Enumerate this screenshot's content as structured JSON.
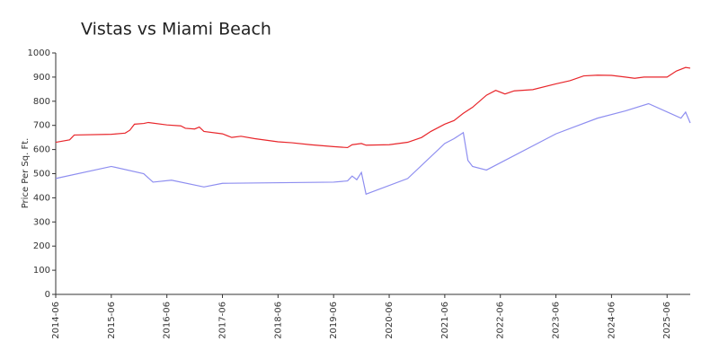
{
  "chart_data": {
    "type": "line",
    "title": "Vistas vs Miami Beach",
    "y_label": "Price Per Sq. Ft.",
    "xlim": [
      "2014-06",
      "2025-11"
    ],
    "xticks": [
      "2014-06",
      "2015-06",
      "2016-06",
      "2017-06",
      "2018-06",
      "2019-06",
      "2020-06",
      "2021-06",
      "2022-06",
      "2023-06",
      "2024-06",
      "2025-06"
    ],
    "ylim": [
      0,
      1000
    ],
    "yticks": [
      0,
      100,
      200,
      300,
      400,
      500,
      600,
      700,
      800,
      900,
      1000
    ],
    "series": [
      {
        "color": "#e8262b",
        "x": [
          "2014-06",
          "2014-09",
          "2014-10",
          "2015-06",
          "2015-09",
          "2015-10",
          "2015-11",
          "2016-01",
          "2016-02",
          "2016-06",
          "2016-09",
          "2016-10",
          "2016-12",
          "2017-01",
          "2017-02",
          "2017-06",
          "2017-08",
          "2017-10",
          "2018-01",
          "2018-06",
          "2018-09",
          "2019-01",
          "2019-06",
          "2019-09",
          "2019-10",
          "2019-12",
          "2020-01",
          "2020-06",
          "2020-10",
          "2021-01",
          "2021-03",
          "2021-06",
          "2021-08",
          "2021-10",
          "2021-12",
          "2022-03",
          "2022-05",
          "2022-07",
          "2022-09",
          "2023-01",
          "2023-06",
          "2023-09",
          "2023-12",
          "2024-03",
          "2024-06",
          "2024-09",
          "2024-11",
          "2025-01",
          "2025-06",
          "2025-08",
          "2025-10",
          "2025-11"
        ],
        "values": [
          630,
          640,
          660,
          663,
          668,
          680,
          705,
          708,
          712,
          702,
          698,
          688,
          685,
          693,
          675,
          665,
          650,
          655,
          645,
          632,
          628,
          620,
          612,
          608,
          620,
          625,
          618,
          620,
          630,
          650,
          675,
          705,
          720,
          750,
          775,
          825,
          845,
          830,
          843,
          848,
          872,
          885,
          905,
          908,
          907,
          900,
          895,
          900,
          900,
          925,
          940,
          937
        ]
      },
      {
        "color": "#8e8ef0",
        "x": [
          "2014-06",
          "2015-06",
          "2016-01",
          "2016-03",
          "2016-07",
          "2017-02",
          "2017-06",
          "2019-06",
          "2019-09",
          "2019-10",
          "2019-11",
          "2019-12",
          "2020-01",
          "2020-10",
          "2021-06",
          "2021-08",
          "2021-10",
          "2021-11",
          "2021-12",
          "2022-03",
          "2023-06",
          "2024-03",
          "2024-09",
          "2025-02",
          "2025-09",
          "2025-10",
          "2025-11"
        ],
        "values": [
          480,
          530,
          500,
          465,
          473,
          445,
          460,
          465,
          470,
          490,
          475,
          505,
          415,
          480,
          625,
          645,
          670,
          555,
          530,
          515,
          665,
          730,
          760,
          790,
          730,
          755,
          710
        ]
      }
    ]
  }
}
